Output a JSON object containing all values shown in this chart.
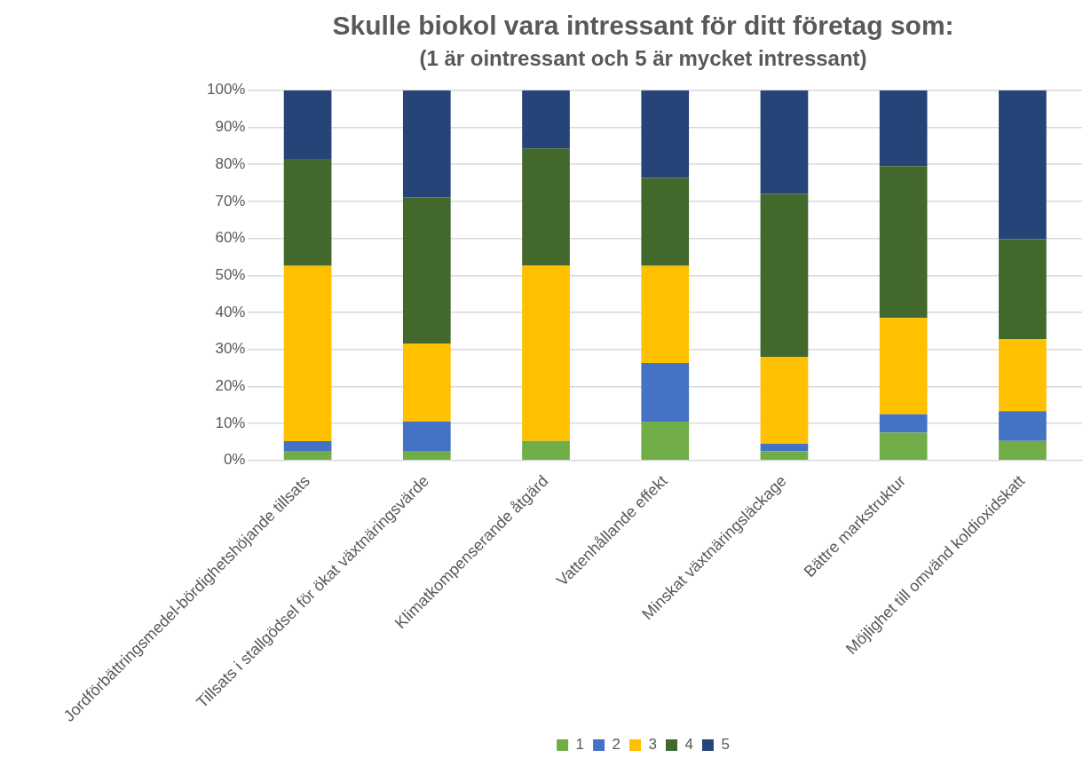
{
  "chart_data": {
    "type": "bar",
    "stacked": true,
    "title": "Skulle biokol vara intressant för ditt företag som:",
    "subtitle": "(1 är ointressant och 5 är mycket intressant)",
    "categories": [
      "Jordförbättringsmedel-bördighetshöjande tillsats",
      "Tillsats i stallgödsel för ökat växtnäringsvärde",
      "Klimatkompenserande åtgärd",
      "Vattenhållande effekt",
      "Minskat växtnäringsläckage",
      "Bättre markstruktur",
      "Möjlighet till omvänd koldioxidskatt"
    ],
    "series": [
      {
        "name": "1",
        "color": "#70ad47",
        "values": [
          2.6,
          2.6,
          5.3,
          10.5,
          2.5,
          7.5,
          5.3
        ]
      },
      {
        "name": "2",
        "color": "#4472c4",
        "values": [
          2.6,
          7.9,
          0,
          15.8,
          2,
          5,
          8
        ]
      },
      {
        "name": "3",
        "color": "#ffc000",
        "values": [
          47.4,
          21.1,
          47.4,
          26.3,
          23.5,
          26,
          19.5
        ]
      },
      {
        "name": "4",
        "color": "#43682b",
        "values": [
          28.9,
          39.5,
          31.6,
          23.7,
          44,
          41,
          27
        ]
      },
      {
        "name": "5",
        "color": "#264478",
        "values": [
          18.5,
          28.9,
          15.7,
          23.7,
          28,
          20.5,
          40.2
        ]
      }
    ],
    "ylim": [
      0,
      100
    ],
    "yticks": [
      {
        "value": 0,
        "label": "0%"
      },
      {
        "value": 10,
        "label": "10%"
      },
      {
        "value": 20,
        "label": "20%"
      },
      {
        "value": 30,
        "label": "30%"
      },
      {
        "value": 40,
        "label": "40%"
      },
      {
        "value": 50,
        "label": "50%"
      },
      {
        "value": 60,
        "label": "60%"
      },
      {
        "value": 70,
        "label": "70%"
      },
      {
        "value": 80,
        "label": "80%"
      },
      {
        "value": 90,
        "label": "90%"
      },
      {
        "value": 100,
        "label": "100%"
      }
    ],
    "grid": "y",
    "legend": "bottom"
  }
}
